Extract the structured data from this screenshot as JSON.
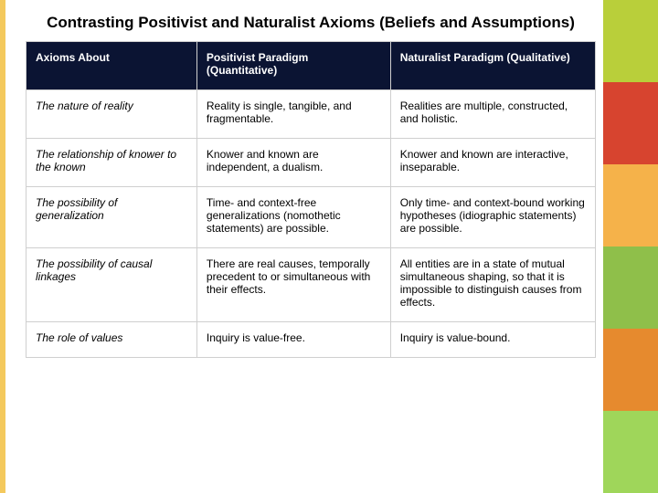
{
  "title": "Contrasting Positivist and Naturalist Axioms (Beliefs and Assumptions)",
  "title_fontsize": 17,
  "table": {
    "header_bg": "#0b1433",
    "header_fg": "#ffffff",
    "body_fg": "#000000",
    "body_fontsize": 12,
    "header_fontsize": 12,
    "col_widths_pct": [
      30,
      34,
      36
    ],
    "columns": [
      "Axioms About",
      "Positivist Paradigm (Quantitative)",
      "Naturalist Paradigm (Qualitative)"
    ],
    "rows": [
      {
        "axiom": "The nature of reality",
        "positivist": "Reality is single, tangible, and fragmentable.",
        "naturalist": "Realities are multiple, constructed, and holistic."
      },
      {
        "axiom": "The relationship of knower to the known",
        "positivist": "Knower and known are independent, a dualism.",
        "naturalist": "Knower and known are interactive, inseparable."
      },
      {
        "axiom": "The possibility of generalization",
        "positivist": "Time- and context-free generalizations (nomothetic statements) are possible.",
        "naturalist": "Only time- and context-bound working hypotheses (idiographic statements) are possible."
      },
      {
        "axiom": "The possibility of causal linkages",
        "positivist": "There are real causes, temporally precedent to or simultaneous with their effects.",
        "naturalist": "All entities are in a state of mutual simultaneous shaping, so that it is impossible to distinguish causes from effects."
      },
      {
        "axiom": "The role of values",
        "positivist": "Inquiry is value-free.",
        "naturalist": "Inquiry is value-bound."
      }
    ]
  },
  "decor_colors": [
    "#b9cf3a",
    "#d7442f",
    "#f5b24a",
    "#8fbf4a",
    "#e68a2e",
    "#9fd65a"
  ],
  "left_accent_color": "#f4c95d"
}
